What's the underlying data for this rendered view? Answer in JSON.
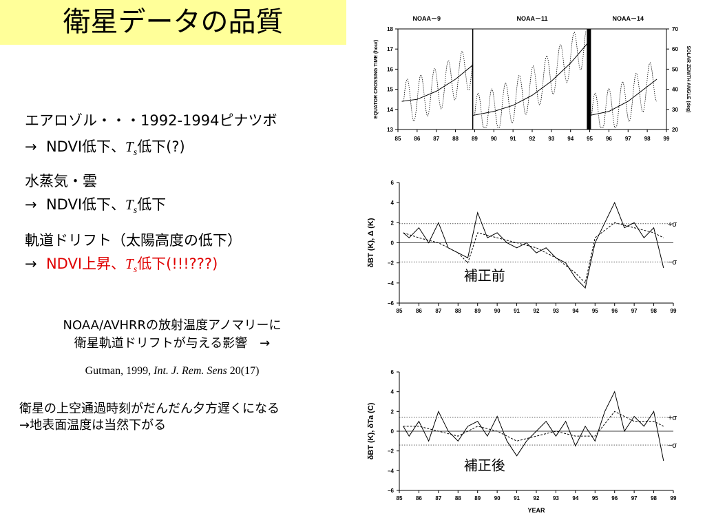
{
  "title": "衛星データの品質",
  "bullets": [
    {
      "line1": "エアロゾル・・・1992-1994ピナツボ",
      "line2_arrow": "→",
      "line2_a": "NDVI低下、",
      "ts_T": "T",
      "ts_s": "s",
      "line2_b": "低下(?)"
    },
    {
      "line1": "水蒸気・雲",
      "line2_arrow": "→",
      "line2_a": "NDVI低下、",
      "ts_T": "T",
      "ts_s": "s",
      "line2_b": "低下"
    },
    {
      "line1": "軌道ドリフト（太陽高度の低下）",
      "line2_arrow": "→",
      "line2_a": "NDVI上昇、",
      "ts_T": "T",
      "ts_s": "s",
      "line2_b": "低下(!!!???)"
    }
  ],
  "caption": {
    "line1": "NOAA/AVHRRの放射温度アノマリーに",
    "line2": "衛星軌道ドリフトが与える影響　→"
  },
  "citation": {
    "prefix": "Gutman, 1999, ",
    "journal": "Int. J. Rem. Sens",
    "suffix": " 20(17)"
  },
  "note": {
    "line1": "衛星の上空通過時刻がだんだん夕方遅くになる",
    "line2": "→地表面温度は当然下がる"
  },
  "chart_data": [
    {
      "type": "line",
      "satellites": [
        "NOAA－9",
        "NOAA－11",
        "NOAA－14"
      ],
      "ylabel_left": "EQUATOR CROSSING TIME (hour)",
      "ylabel_right": "SOLAR ZENITH ANGLE (deg)",
      "ylim": [
        13,
        18
      ],
      "ylim_right": [
        20,
        70
      ],
      "y_ticks": [
        "13",
        "14",
        "15",
        "16",
        "17",
        "18"
      ],
      "y_ticks_right": [
        "20",
        "30",
        "40",
        "50",
        "60",
        "70"
      ],
      "x_ticks": [
        "85",
        "86",
        "87",
        "88",
        "89",
        "90",
        "91",
        "92",
        "93",
        "94",
        "95",
        "96",
        "97",
        "98",
        "99"
      ],
      "series": [
        {
          "x": [
            85.2,
            86,
            87,
            88,
            88.9
          ],
          "y": [
            14.4,
            14.5,
            14.9,
            15.5,
            16.2
          ]
        },
        {
          "x": [
            88.9,
            90,
            91,
            92,
            93,
            94,
            94.9
          ],
          "y": [
            13.7,
            13.9,
            14.2,
            14.7,
            15.4,
            16.3,
            17.3
          ]
        },
        {
          "x": [
            95.0,
            96,
            97,
            98.5
          ],
          "y": [
            13.7,
            13.9,
            14.4,
            15.5
          ]
        }
      ]
    },
    {
      "type": "line",
      "ylabel": "δBT (K), Δ (K)",
      "label": "補正前",
      "ylim": [
        -6,
        6
      ],
      "y_ticks": [
        "6",
        "4",
        "2",
        "0",
        "−2",
        "−4",
        "−6"
      ],
      "x_ticks": [
        "85",
        "86",
        "87",
        "88",
        "89",
        "90",
        "91",
        "92",
        "93",
        "94",
        "95",
        "96",
        "97",
        "98",
        "99"
      ],
      "sigma_labels": [
        "+σ",
        "−σ"
      ],
      "sigma": 1.9,
      "series": [
        {
          "x": [
            85.2,
            85.5,
            86,
            86.5,
            87,
            87.5,
            88,
            88.5,
            89,
            89.5,
            90,
            90.5,
            91,
            91.5,
            92,
            92.5,
            93,
            93.5,
            94,
            94.5,
            95,
            95.5,
            96,
            96.5,
            97,
            97.5,
            98,
            98.5
          ],
          "y": [
            1,
            0.5,
            1.5,
            0,
            2,
            -0.5,
            -1,
            -1.5,
            3,
            0.5,
            1,
            0,
            -0.5,
            0,
            -1,
            -0.5,
            -1.5,
            -2,
            -3.5,
            -4.5,
            0,
            2,
            4,
            1.5,
            2,
            0.5,
            1.5,
            -2.5
          ]
        },
        {
          "x": [
            85.2,
            86,
            87,
            88,
            88.5,
            89,
            90,
            91,
            92,
            93,
            94,
            94.5,
            95,
            96,
            97,
            98,
            98.5
          ],
          "y": [
            1,
            0.5,
            0,
            -1,
            -2,
            1,
            0.5,
            0,
            -0.5,
            -1.5,
            -3,
            -4,
            0.5,
            2,
            1.5,
            1,
            0.5
          ]
        }
      ]
    },
    {
      "type": "line",
      "ylabel": "δBT (K), δTa (C)",
      "xlabel": "YEAR",
      "label": "補正後",
      "ylim": [
        -6,
        6
      ],
      "y_ticks": [
        "6",
        "4",
        "2",
        "0",
        "−2",
        "−4",
        "−6"
      ],
      "x_ticks": [
        "85",
        "86",
        "87",
        "88",
        "89",
        "90",
        "91",
        "92",
        "93",
        "94",
        "95",
        "96",
        "97",
        "98",
        "99"
      ],
      "sigma_labels": [
        "+σ",
        "−σ"
      ],
      "sigma": 1.4,
      "series": [
        {
          "x": [
            85.2,
            85.5,
            86,
            86.5,
            87,
            87.5,
            88,
            88.5,
            89,
            89.5,
            90,
            90.5,
            91,
            91.5,
            92,
            92.5,
            93,
            93.5,
            94,
            94.5,
            95,
            95.5,
            96,
            96.5,
            97,
            97.5,
            98,
            98.5
          ],
          "y": [
            0.5,
            -0.5,
            1,
            -1,
            2,
            0,
            -1,
            0.5,
            1,
            -0.5,
            1.5,
            -1,
            -2.5,
            -1,
            0,
            1,
            -0.5,
            1,
            -1.5,
            0.5,
            -1,
            2,
            4,
            0,
            1.5,
            0.5,
            2,
            -3
          ]
        },
        {
          "x": [
            85.2,
            86,
            87,
            88,
            89,
            90,
            91,
            92,
            93,
            94,
            95,
            96,
            97,
            98,
            98.5
          ],
          "y": [
            0.5,
            0.5,
            0,
            -0.5,
            0.5,
            0,
            -1,
            -0.5,
            0,
            -0.5,
            -0.5,
            2,
            1,
            1,
            0.5
          ]
        }
      ]
    }
  ]
}
